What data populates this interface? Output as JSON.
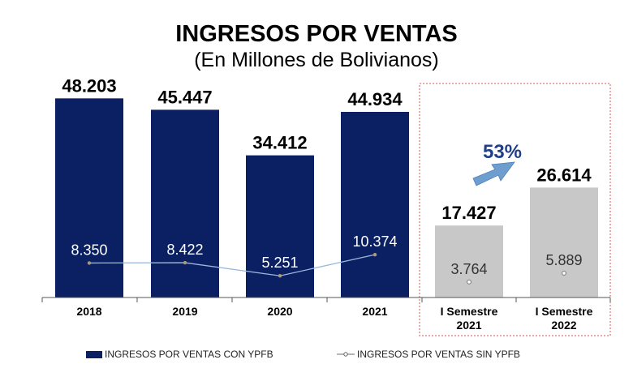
{
  "title": "INGRESOS POR VENTAS",
  "subtitle": "(En Millones de Bolivianos)",
  "growth_label": "53%",
  "colors": {
    "bar_actual": "#0b2063",
    "bar_semester": "#c8c8c8",
    "line": "#9ab8da",
    "marker": "#a89a78",
    "highlight_border": "#d9534f",
    "growth_text": "#1f3f8a",
    "arrow": "#6e9ed0"
  },
  "chart_data": {
    "type": "bar",
    "title": "INGRESOS POR VENTAS",
    "subtitle": "(En Millones de Bolivianos)",
    "categories": [
      "2018",
      "2019",
      "2020",
      "2021",
      "I Semestre 2021",
      "I Semestre 2022"
    ],
    "category_labels": [
      [
        "2018"
      ],
      [
        "2019"
      ],
      [
        "2020"
      ],
      [
        "2021"
      ],
      [
        "I Semestre",
        "2021"
      ],
      [
        "I Semestre",
        "2022"
      ]
    ],
    "ylim": [
      0,
      52000
    ],
    "series": [
      {
        "name": "INGRESOS POR VENTAS CON YPFB",
        "kind": "bar",
        "values": [
          48203,
          45447,
          34412,
          44934,
          17427,
          26614
        ],
        "labels": [
          "48.203",
          "45.447",
          "34.412",
          "44.934",
          "17.427",
          "26.614"
        ]
      },
      {
        "name": "INGRESOS POR VENTAS SIN YPFB",
        "kind": "line",
        "values": [
          8350,
          8422,
          5251,
          10374,
          3764,
          5889
        ],
        "labels": [
          "8.350",
          "8.422",
          "5.251",
          "10.374",
          "3.764",
          "5.889"
        ]
      }
    ],
    "annotation": "53%",
    "legend_position": "bottom",
    "grid": false
  }
}
